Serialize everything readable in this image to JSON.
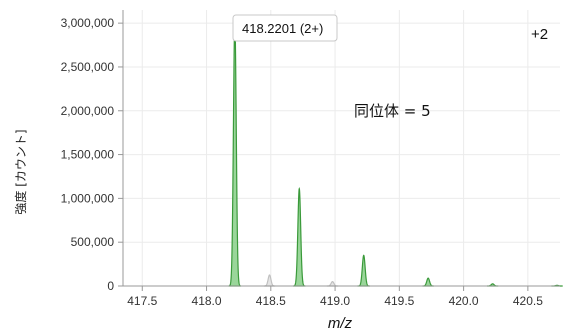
{
  "chart_data": {
    "type": "line",
    "xlabel": "m/z",
    "ylabel": "強度 [カウント]",
    "xlim": [
      417.35,
      420.75
    ],
    "ylim": [
      0,
      3150000
    ],
    "x_ticks": [
      417.5,
      418.0,
      418.5,
      419.0,
      419.5,
      420.0,
      420.5
    ],
    "x_tick_labels": [
      "417.5",
      "418.0",
      "418.5",
      "419.0",
      "419.5",
      "420.0",
      "420.5"
    ],
    "y_ticks": [
      0,
      500000,
      1000000,
      1500000,
      2000000,
      2500000,
      3000000
    ],
    "y_tick_labels": [
      "0",
      "500,000",
      "1,000,000",
      "1,500,000",
      "2,000,000",
      "2,500,000",
      "3,000,000"
    ],
    "grid": true,
    "series": [
      {
        "color": "#3a9a3a",
        "fill": "#8fd18f",
        "peaks": [
          {
            "x": 418.2201,
            "y": 3010000
          },
          {
            "x": 418.7215,
            "y": 1110000
          },
          {
            "x": 419.2229,
            "y": 350000
          },
          {
            "x": 419.7243,
            "y": 90000
          },
          {
            "x": 420.2257,
            "y": 25000
          },
          {
            "x": 420.7271,
            "y": 8000
          }
        ]
      },
      {
        "color": "#c0c0c0",
        "fill": "#e2e2e2",
        "peaks": [
          {
            "x": 418.49,
            "y": 125000
          },
          {
            "x": 418.98,
            "y": 50000
          }
        ]
      }
    ],
    "annotations": {
      "peak_callout": "418.2201 (2+)",
      "isotope_label": "同位体 = 5",
      "charge_label": "+2"
    }
  }
}
